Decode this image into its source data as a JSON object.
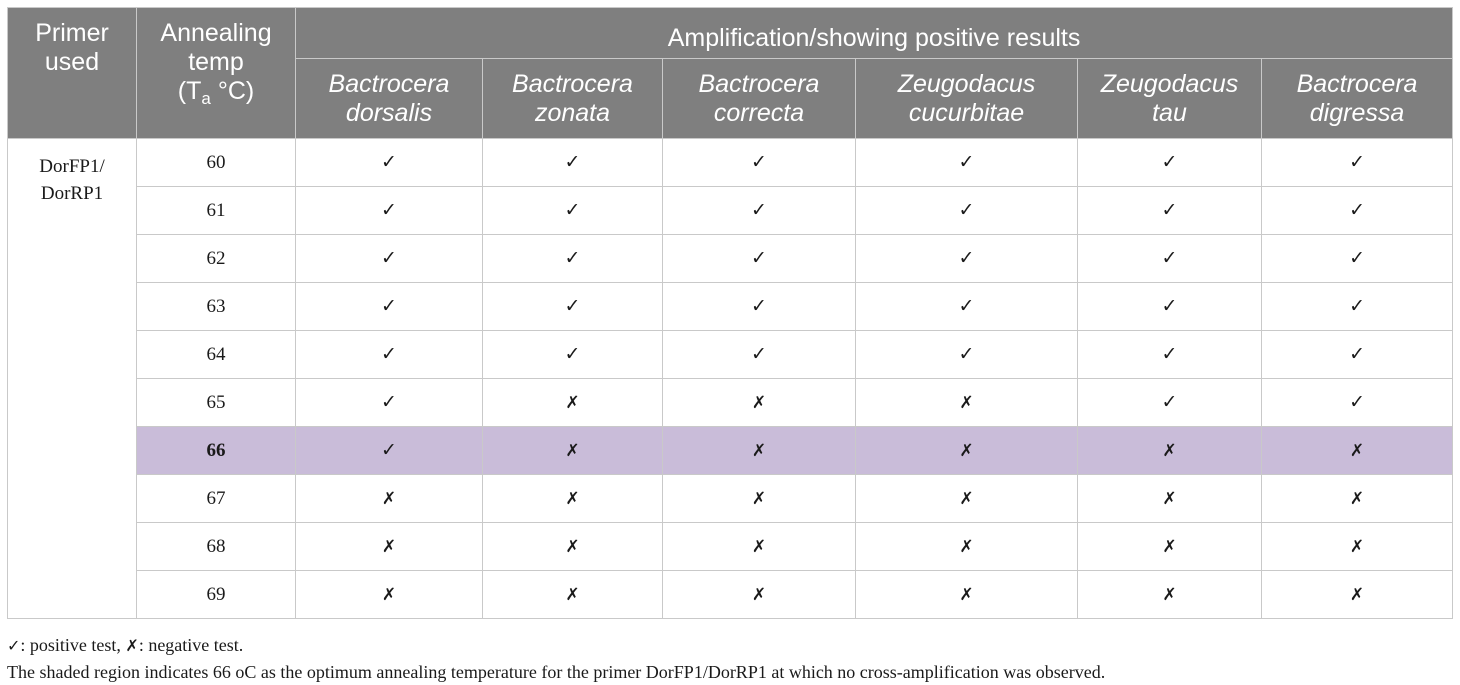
{
  "header": {
    "primer": [
      "Primer",
      "used"
    ],
    "temp": [
      "Annealing",
      "temp"
    ],
    "temp_unit_open": "(T",
    "temp_unit_sub": "a",
    "temp_unit_close": " °C)",
    "group": "Amplification/showing positive results",
    "species": [
      [
        "Bactrocera",
        "dorsalis"
      ],
      [
        "Bactrocera",
        "zonata"
      ],
      [
        "Bactrocera",
        "correcta"
      ],
      [
        "Zeugodacus",
        "cucurbitae"
      ],
      [
        "Zeugodacus",
        "tau"
      ],
      [
        "Bactrocera",
        "digressa"
      ]
    ]
  },
  "primer_label": [
    "DorFP1/",
    "DorRP1"
  ],
  "symbols": {
    "positive": "✓",
    "negative": "✗"
  },
  "rows": [
    {
      "temp": "60",
      "results": [
        "✓",
        "✓",
        "✓",
        "✓",
        "✓",
        "✓"
      ]
    },
    {
      "temp": "61",
      "results": [
        "✓",
        "✓",
        "✓",
        "✓",
        "✓",
        "✓"
      ]
    },
    {
      "temp": "62",
      "results": [
        "✓",
        "✓",
        "✓",
        "✓",
        "✓",
        "✓"
      ]
    },
    {
      "temp": "63",
      "results": [
        "✓",
        "✓",
        "✓",
        "✓",
        "✓",
        "✓"
      ]
    },
    {
      "temp": "64",
      "results": [
        "✓",
        "✓",
        "✓",
        "✓",
        "✓",
        "✓"
      ]
    },
    {
      "temp": "65",
      "results": [
        "✓",
        "✗",
        "✗",
        "✗",
        "✓",
        "✓"
      ]
    },
    {
      "temp": "66",
      "results": [
        "✓",
        "✗",
        "✗",
        "✗",
        "✗",
        "✗"
      ],
      "highlight": true
    },
    {
      "temp": "67",
      "results": [
        "✗",
        "✗",
        "✗",
        "✗",
        "✗",
        "✗"
      ]
    },
    {
      "temp": "68",
      "results": [
        "✗",
        "✗",
        "✗",
        "✗",
        "✗",
        "✗"
      ]
    },
    {
      "temp": "69",
      "results": [
        "✗",
        "✗",
        "✗",
        "✗",
        "✗",
        "✗"
      ]
    }
  ],
  "colors": {
    "header_bg": "#7f7f7f",
    "highlight_bg": "#c9bcd9",
    "border": "#c9c9c9"
  },
  "footnote": {
    "legend_pos_symbol": "✓",
    "legend_pos_text": ": positive test, ",
    "legend_neg_symbol": "✗",
    "legend_neg_text": ": negative test.",
    "note": "The shaded region indicates 66 oC as the optimum annealing temperature for the primer DorFP1/DorRP1 at which no cross-amplification was observed."
  }
}
